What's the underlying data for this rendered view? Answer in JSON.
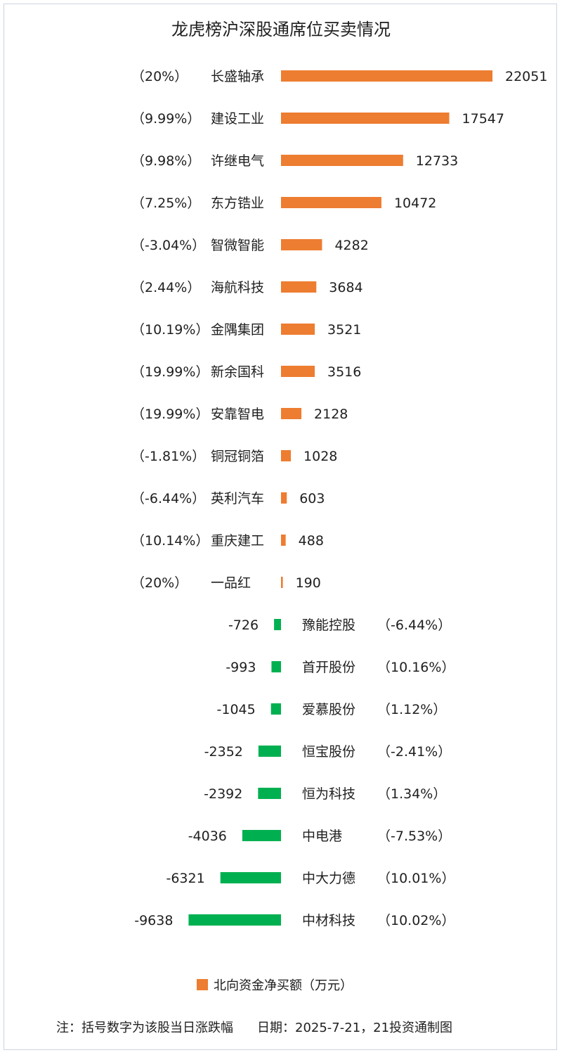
{
  "title": "龙虎榜沪深股通席位买卖情况",
  "legend": {
    "label": "北向资金净买额（万元）",
    "color": "#ED7D31"
  },
  "footnote": {
    "note": "注：括号数字为该股当日涨跌幅",
    "date": "日期：2025-7-21，21投资通制图"
  },
  "colors": {
    "positive": "#ED7D31",
    "negative": "#00B050"
  },
  "chart_data": {
    "type": "bar",
    "orientation": "horizontal",
    "title": "龙虎榜沪深股通席位买卖情况",
    "series": [
      {
        "name": "北向资金净买额（万元）"
      }
    ],
    "rows": [
      {
        "stock": "长盛轴承",
        "change": "（20%）",
        "value": 22051
      },
      {
        "stock": "建设工业",
        "change": "（9.99%）",
        "value": 17547
      },
      {
        "stock": "许继电气",
        "change": "（9.98%）",
        "value": 12733
      },
      {
        "stock": "东方锆业",
        "change": "（7.25%）",
        "value": 10472
      },
      {
        "stock": "智微智能",
        "change": "（-3.04%）",
        "value": 4282
      },
      {
        "stock": "海航科技",
        "change": "（2.44%）",
        "value": 3684
      },
      {
        "stock": "金隅集团",
        "change": "（10.19%）",
        "value": 3521
      },
      {
        "stock": "新余国科",
        "change": "（19.99%）",
        "value": 3516
      },
      {
        "stock": "安靠智电",
        "change": "（19.99%）",
        "value": 2128
      },
      {
        "stock": "铜冠铜箔",
        "change": "（-1.81%）",
        "value": 1028
      },
      {
        "stock": "英利汽车",
        "change": "（-6.44%）",
        "value": 603
      },
      {
        "stock": "重庆建工",
        "change": "（10.14%）",
        "value": 488
      },
      {
        "stock": "一品红",
        "change": "（20%）",
        "value": 190
      },
      {
        "stock": "豫能控股",
        "change": "（-6.44%）",
        "value": -726
      },
      {
        "stock": "首开股份",
        "change": "（10.16%）",
        "value": -993
      },
      {
        "stock": "爱慕股份",
        "change": "（1.12%）",
        "value": -1045
      },
      {
        "stock": "恒宝股份",
        "change": "（-2.41%）",
        "value": -2352
      },
      {
        "stock": "恒为科技",
        "change": "（1.34%）",
        "value": -2392
      },
      {
        "stock": "中电港",
        "change": "（-7.53%）",
        "value": -4036
      },
      {
        "stock": "中大力德",
        "change": "（10.01%）",
        "value": -6321
      },
      {
        "stock": "中材科技",
        "change": "（10.02%）",
        "value": -9638
      }
    ],
    "grid": false,
    "legend_position": "bottom"
  }
}
